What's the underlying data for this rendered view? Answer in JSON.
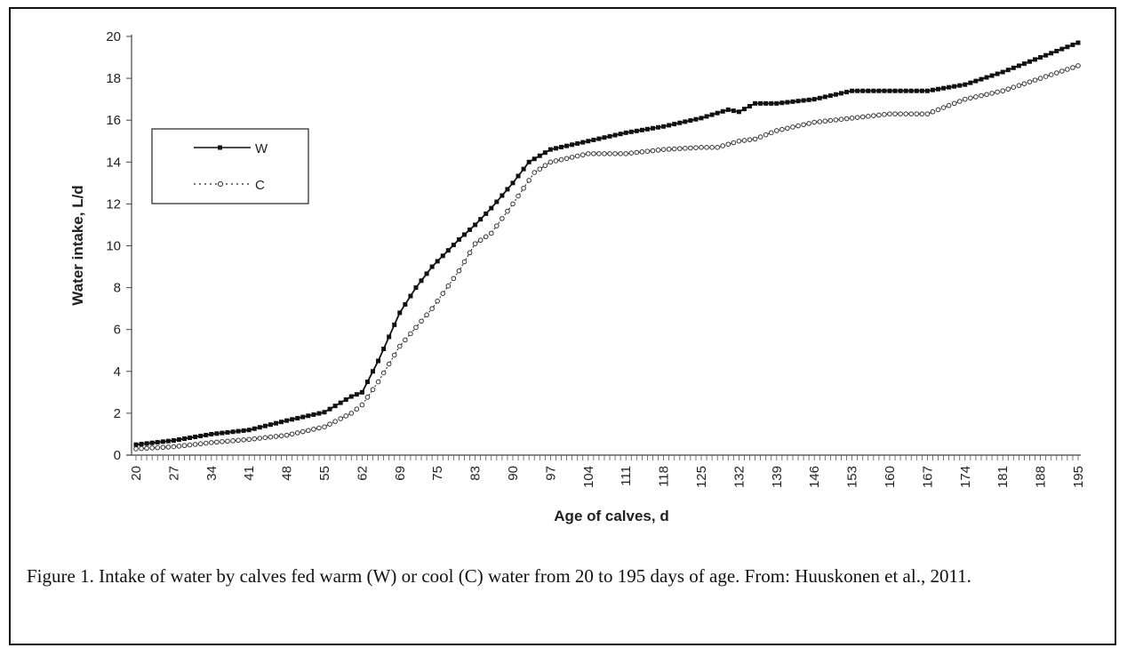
{
  "chart_data": {
    "type": "line",
    "title": "",
    "xlabel": "Age of calves, d",
    "ylabel": "Water intake, L/d",
    "xlim": [
      20,
      195
    ],
    "ylim": [
      0,
      20
    ],
    "yticks": [
      0,
      2,
      4,
      6,
      8,
      10,
      12,
      14,
      16,
      18,
      20
    ],
    "xtick_labels": [
      "20",
      "27",
      "34",
      "41",
      "48",
      "55",
      "62",
      "69",
      "75",
      "83",
      "90",
      "97",
      "104",
      "111",
      "118",
      "125",
      "132",
      "139",
      "146",
      "153",
      "160",
      "167",
      "174",
      "181",
      "188",
      "195"
    ],
    "legend_position": "upper-left",
    "grid": false,
    "series": [
      {
        "name": "W",
        "color": "#111111",
        "marker": "filled-square",
        "line": "solid",
        "x": [
          20,
          27,
          34,
          41,
          48,
          55,
          60,
          62,
          65,
          69,
          72,
          75,
          80,
          83,
          86,
          90,
          93,
          97,
          104,
          111,
          118,
          125,
          130,
          132,
          135,
          139,
          146,
          153,
          160,
          167,
          174,
          181,
          188,
          195
        ],
        "y": [
          0.5,
          0.7,
          1.0,
          1.2,
          1.65,
          2.05,
          2.8,
          3.0,
          4.5,
          6.8,
          8.0,
          9.0,
          10.3,
          11.0,
          11.8,
          13.0,
          14.0,
          14.6,
          15.0,
          15.4,
          15.7,
          16.1,
          16.5,
          16.4,
          16.8,
          16.8,
          17.0,
          17.4,
          17.4,
          17.4,
          17.7,
          18.3,
          19.0,
          19.7
        ]
      },
      {
        "name": "C",
        "color": "#333333",
        "marker": "open-circle",
        "line": "dotted",
        "x": [
          20,
          27,
          34,
          41,
          48,
          55,
          60,
          62,
          65,
          69,
          75,
          80,
          83,
          86,
          90,
          94,
          97,
          104,
          111,
          118,
          125,
          128,
          132,
          135,
          139,
          146,
          153,
          160,
          167,
          174,
          181,
          188,
          195
        ],
        "y": [
          0.3,
          0.4,
          0.6,
          0.75,
          0.95,
          1.35,
          2.0,
          2.4,
          3.5,
          5.2,
          7.0,
          8.8,
          10.1,
          10.6,
          12.0,
          13.5,
          14.0,
          14.4,
          14.4,
          14.6,
          14.7,
          14.7,
          15.0,
          15.1,
          15.5,
          15.9,
          16.1,
          16.3,
          16.3,
          17.0,
          17.4,
          18.0,
          18.6
        ]
      }
    ]
  },
  "caption": "Figure 1.  Intake of water by calves fed warm (W) or cool (C) water from 20 to 195 days of age.  From: Huuskonen et al., 2011."
}
